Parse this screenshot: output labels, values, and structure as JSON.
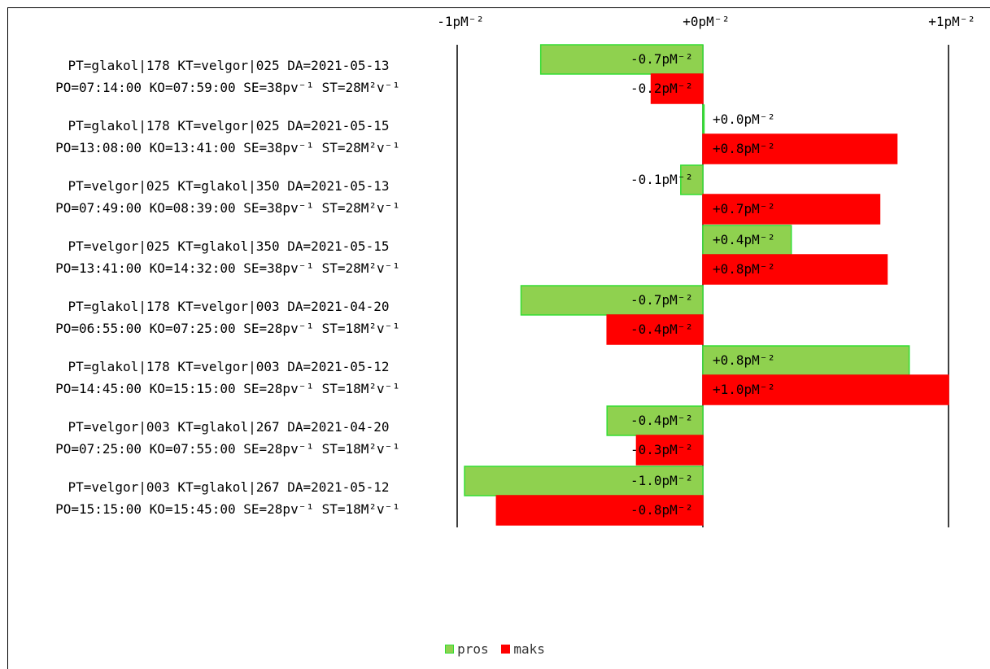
{
  "chart_data": {
    "type": "bar",
    "orientation": "horizontal",
    "x_ticks": [
      "-1pM⁻²",
      "+0pM⁻²",
      "+1pM⁻²"
    ],
    "xlim": [
      -1,
      1
    ],
    "categories": [
      [
        "PT=glakol|178 KT=velgor|025 DA=2021-05-13",
        "PO=07:14:00 KO=07:59:00 SE=38pv⁻¹ ST=28M²v⁻¹"
      ],
      [
        "PT=glakol|178 KT=velgor|025 DA=2021-05-15",
        "PO=13:08:00 KO=13:41:00 SE=38pv⁻¹ ST=28M²v⁻¹"
      ],
      [
        "PT=velgor|025 KT=glakol|350 DA=2021-05-13",
        "PO=07:49:00 KO=08:39:00 SE=38pv⁻¹ ST=28M²v⁻¹"
      ],
      [
        "PT=velgor|025 KT=glakol|350 DA=2021-05-15",
        "PO=13:41:00 KO=14:32:00 SE=38pv⁻¹ ST=28M²v⁻¹"
      ],
      [
        "PT=glakol|178 KT=velgor|003 DA=2021-04-20",
        "PO=06:55:00 KO=07:25:00 SE=28pv⁻¹ ST=18M²v⁻¹"
      ],
      [
        "PT=glakol|178 KT=velgor|003 DA=2021-05-12",
        "PO=14:45:00 KO=15:15:00 SE=28pv⁻¹ ST=18M²v⁻¹"
      ],
      [
        "PT=velgor|003 KT=glakol|267 DA=2021-04-20",
        "PO=07:25:00 KO=07:55:00 SE=28pv⁻¹ ST=18M²v⁻¹"
      ],
      [
        "PT=velgor|003 KT=glakol|267 DA=2021-05-12",
        "PO=15:15:00 KO=15:45:00 SE=28pv⁻¹ ST=18M²v⁻¹"
      ]
    ],
    "series": [
      {
        "name": "pros",
        "color": "#8fd14f",
        "border": "#33dd33",
        "values": [
          -0.66,
          0.0,
          -0.09,
          0.36,
          -0.74,
          0.84,
          -0.39,
          -0.97
        ],
        "labels": [
          "-0.7pM⁻²",
          "+0.0pM⁻²",
          "-0.1pM⁻²",
          "+0.4pM⁻²",
          "-0.7pM⁻²",
          "+0.8pM⁻²",
          "-0.4pM⁻²",
          "-1.0pM⁻²"
        ]
      },
      {
        "name": "maks",
        "color": "#ff0000",
        "border": "#ff0000",
        "values": [
          -0.21,
          0.79,
          0.72,
          0.75,
          -0.39,
          1.0,
          -0.27,
          -0.84
        ],
        "labels": [
          "-0.2pM⁻²",
          "+0.8pM⁻²",
          "+0.7pM⁻²",
          "+0.8pM⁻²",
          "-0.4pM⁻²",
          "+1.0pM⁻²",
          "-0.3pM⁻²",
          "-0.8pM⁻²"
        ]
      }
    ],
    "legend_position": "bottom-center"
  }
}
